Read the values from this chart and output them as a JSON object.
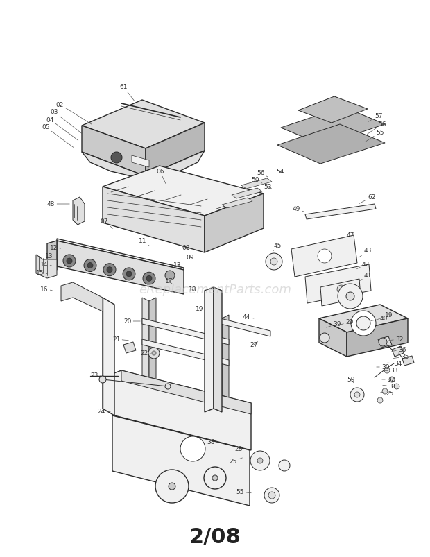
{
  "bg_color": "#ffffff",
  "line_color": "#2a2a2a",
  "fill_light": "#f0f0f0",
  "fill_med": "#e0e0e0",
  "fill_dark": "#cacaca",
  "fill_darker": "#b8b8b8",
  "footer_text": "2/08",
  "footer_fontsize": 22,
  "watermark_text": "eReplacementParts.com",
  "watermark_fontsize": 13,
  "watermark_color": "#c8c8c8",
  "fig_width": 6.2,
  "fig_height": 8.04,
  "dpi": 100,
  "label_fontsize": 6.5,
  "label_color": "#333333",
  "lw_thick": 1.0,
  "lw_med": 0.7,
  "lw_thin": 0.5
}
